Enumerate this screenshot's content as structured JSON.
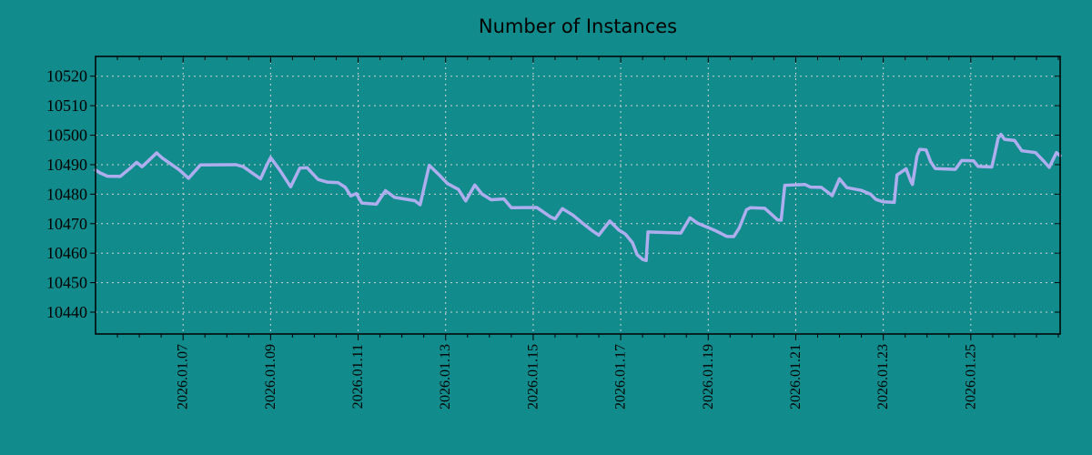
{
  "colors": {
    "background": "#118b8b",
    "line": "#aeaeef",
    "grid": "#d4d4d4",
    "axis": "#000000",
    "text": "#000000"
  },
  "chart_data": {
    "type": "line",
    "title": "Number of Instances",
    "series_name": "instances",
    "xlabel": "",
    "ylabel": "",
    "x_start": "2026-01-05 00:00",
    "x_end": "2026-01-27 01:00",
    "total_hours": 529,
    "x_tick_hours": [
      48,
      96,
      144,
      192,
      240,
      288,
      336,
      384,
      432,
      480
    ],
    "x_tick_labels": [
      "2026.01.07",
      "2026.01.09",
      "2026.01.11",
      "2026.01.13",
      "2026.01.15",
      "2026.01.17",
      "2026.01.19",
      "2026.01.21",
      "2026.01.23",
      "2026.01.25"
    ],
    "minor_x_tick_interval_hours": 12,
    "y_ticks": [
      10440,
      10450,
      10460,
      10470,
      10480,
      10490,
      10500,
      10510,
      10520
    ],
    "ylim": [
      10432.6,
      10526.7
    ],
    "grid": true,
    "legend": "none",
    "points": [
      [
        0,
        10488.2
      ],
      [
        2.5,
        10487.2
      ],
      [
        6.5,
        10486.1
      ],
      [
        13.5,
        10486.0
      ],
      [
        19,
        10488.8
      ],
      [
        22.5,
        10490.8
      ],
      [
        25.5,
        10489.3
      ],
      [
        30,
        10491.9
      ],
      [
        33.5,
        10494.0
      ],
      [
        36.5,
        10492.3
      ],
      [
        40,
        10490.8
      ],
      [
        46,
        10488.2
      ],
      [
        51,
        10485.4
      ],
      [
        57.5,
        10489.9
      ],
      [
        77,
        10490.0
      ],
      [
        81,
        10489.3
      ],
      [
        87,
        10486.7
      ],
      [
        90.5,
        10485.2
      ],
      [
        94,
        10490.0
      ],
      [
        96,
        10492.4
      ],
      [
        101,
        10488.2
      ],
      [
        107,
        10482.5
      ],
      [
        112,
        10488.8
      ],
      [
        116,
        10489.0
      ],
      [
        122,
        10485.0
      ],
      [
        127,
        10484.1
      ],
      [
        133,
        10483.9
      ],
      [
        137,
        10482.3
      ],
      [
        140,
        10479.4
      ],
      [
        143,
        10480.2
      ],
      [
        146,
        10477.0
      ],
      [
        154,
        10476.6
      ],
      [
        159,
        10481.2
      ],
      [
        164,
        10478.9
      ],
      [
        175,
        10477.8
      ],
      [
        178,
        10476.4
      ],
      [
        183,
        10489.8
      ],
      [
        189,
        10486.2
      ],
      [
        193,
        10483.6
      ],
      [
        199,
        10481.6
      ],
      [
        203,
        10477.7
      ],
      [
        208,
        10483.1
      ],
      [
        212,
        10480.0
      ],
      [
        217,
        10478.1
      ],
      [
        224,
        10478.4
      ],
      [
        228,
        10475.4
      ],
      [
        242,
        10475.5
      ],
      [
        249.5,
        10472.3
      ],
      [
        252,
        10471.6
      ],
      [
        256,
        10475.1
      ],
      [
        262,
        10472.8
      ],
      [
        267,
        10470.2
      ],
      [
        272,
        10467.8
      ],
      [
        276,
        10466.1
      ],
      [
        282,
        10470.9
      ],
      [
        287,
        10467.8
      ],
      [
        290.5,
        10466.5
      ],
      [
        294.5,
        10463.5
      ],
      [
        297,
        10459.5
      ],
      [
        300,
        10457.9
      ],
      [
        302,
        10457.5
      ],
      [
        303,
        10467.2
      ],
      [
        321,
        10466.8
      ],
      [
        326,
        10472.0
      ],
      [
        330,
        10470.2
      ],
      [
        339,
        10467.9
      ],
      [
        343,
        10466.7
      ],
      [
        346,
        10465.7
      ],
      [
        350,
        10465.6
      ],
      [
        353,
        10468.5
      ],
      [
        357,
        10474.7
      ],
      [
        359,
        10475.4
      ],
      [
        367,
        10475.2
      ],
      [
        371,
        10473.0
      ],
      [
        374,
        10471.3
      ],
      [
        376,
        10471.2
      ],
      [
        378,
        10483.0
      ],
      [
        389,
        10483.3
      ],
      [
        392,
        10482.4
      ],
      [
        398,
        10482.3
      ],
      [
        403,
        10480.0
      ],
      [
        404,
        10479.5
      ],
      [
        408,
        10485.2
      ],
      [
        412,
        10482.2
      ],
      [
        420,
        10481.3
      ],
      [
        425,
        10480.0
      ],
      [
        428,
        10478.2
      ],
      [
        432,
        10477.4
      ],
      [
        438,
        10477.2
      ],
      [
        439.5,
        10486.5
      ],
      [
        444.5,
        10488.6
      ],
      [
        447,
        10484.5
      ],
      [
        448,
        10483.3
      ],
      [
        450.5,
        10493.0
      ],
      [
        452,
        10495.2
      ],
      [
        455.5,
        10495.0
      ],
      [
        458,
        10491.0
      ],
      [
        460.5,
        10488.7
      ],
      [
        471.5,
        10488.4
      ],
      [
        474,
        10490.5
      ],
      [
        475,
        10491.4
      ],
      [
        481.5,
        10491.3
      ],
      [
        484,
        10489.4
      ],
      [
        491.5,
        10489.2
      ],
      [
        493,
        10493.3
      ],
      [
        495,
        10499.0
      ],
      [
        496.5,
        10500.3
      ],
      [
        498.5,
        10498.6
      ],
      [
        504,
        10498.2
      ],
      [
        505.5,
        10496.9
      ],
      [
        508,
        10494.7
      ],
      [
        515.5,
        10494.1
      ],
      [
        517.5,
        10492.8
      ],
      [
        520,
        10491.2
      ],
      [
        523,
        10489.1
      ],
      [
        527,
        10494.1
      ],
      [
        529,
        10493.0
      ]
    ]
  }
}
